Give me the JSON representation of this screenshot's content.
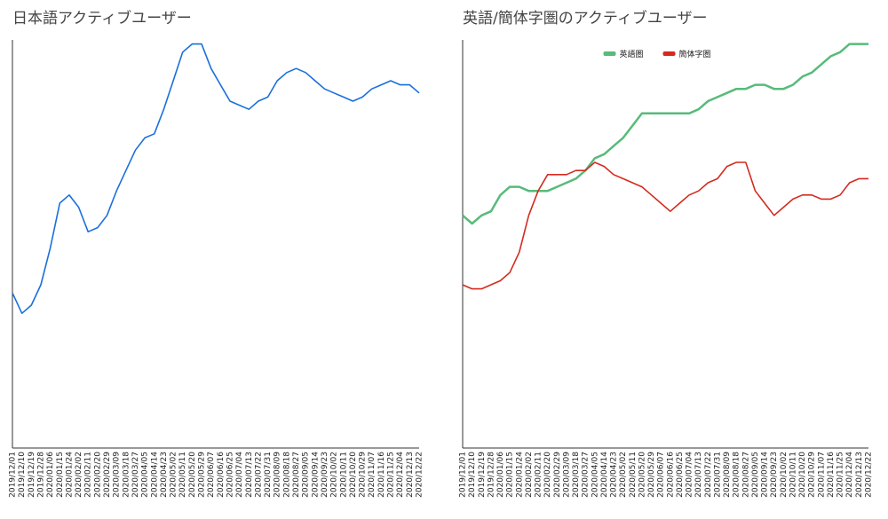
{
  "chart_data": [
    {
      "type": "line",
      "title": "日本語アクティブユーザー",
      "categories": [
        "2019/12/01",
        "2019/12/10",
        "2019/12/19",
        "2019/12/28",
        "2020/01/06",
        "2020/01/15",
        "2020/01/24",
        "2020/02/02",
        "2020/02/11",
        "2020/02/20",
        "2020/02/29",
        "2020/03/09",
        "2020/03/18",
        "2020/03/27",
        "2020/04/05",
        "2020/04/14",
        "2020/04/23",
        "2020/05/02",
        "2020/05/11",
        "2020/05/20",
        "2020/05/29",
        "2020/06/07",
        "2020/06/16",
        "2020/06/25",
        "2020/07/04",
        "2020/07/13",
        "2020/07/22",
        "2020/07/31",
        "2020/08/09",
        "2020/08/18",
        "2020/08/27",
        "2020/09/05",
        "2020/09/14",
        "2020/09/23",
        "2020/10/02",
        "2020/10/11",
        "2020/10/20",
        "2020/10/29",
        "2020/11/07",
        "2020/11/16",
        "2020/11/25",
        "2020/12/04",
        "2020/12/13",
        "2020/12/22"
      ],
      "series": [
        {
          "color": "#1a6fdc",
          "values": [
            38,
            33,
            35,
            40,
            49,
            60,
            62,
            59,
            53,
            54,
            57,
            63,
            68,
            73,
            76,
            77,
            83,
            90,
            97,
            99,
            99,
            93,
            89,
            85,
            84,
            83,
            85,
            86,
            90,
            92,
            93,
            92,
            90,
            88,
            87,
            86,
            85,
            86,
            88,
            89,
            90,
            89,
            89,
            87
          ]
        }
      ],
      "ylim": [
        0,
        100
      ]
    },
    {
      "type": "line",
      "title": "英語/簡体字圏のアクティブユーザー",
      "categories": [
        "2019/12/01",
        "2019/12/10",
        "2019/12/19",
        "2019/12/28",
        "2020/01/06",
        "2020/01/15",
        "2020/01/24",
        "2020/02/02",
        "2020/02/11",
        "2020/02/20",
        "2020/02/29",
        "2020/03/09",
        "2020/03/18",
        "2020/03/27",
        "2020/04/05",
        "2020/04/14",
        "2020/04/23",
        "2020/05/02",
        "2020/05/11",
        "2020/05/20",
        "2020/05/29",
        "2020/06/07",
        "2020/06/16",
        "2020/06/25",
        "2020/07/04",
        "2020/07/13",
        "2020/07/22",
        "2020/07/31",
        "2020/08/09",
        "2020/08/18",
        "2020/08/27",
        "2020/09/05",
        "2020/09/14",
        "2020/09/23",
        "2020/10/02",
        "2020/10/11",
        "2020/10/20",
        "2020/10/29",
        "2020/11/07",
        "2020/11/16",
        "2020/11/25",
        "2020/12/04",
        "2020/12/13",
        "2020/12/22"
      ],
      "series": [
        {
          "name": "英語圏",
          "color": "#57bb7a",
          "values": [
            57,
            55,
            57,
            58,
            62,
            64,
            64,
            63,
            63,
            63,
            64,
            65,
            66,
            68,
            71,
            72,
            74,
            76,
            79,
            82,
            82,
            82,
            82,
            82,
            82,
            83,
            85,
            86,
            87,
            88,
            88,
            89,
            89,
            88,
            88,
            89,
            91,
            92,
            94,
            96,
            97,
            99,
            99,
            99
          ]
        },
        {
          "name": "簡体字圏",
          "color": "#d42a1e",
          "values": [
            40,
            39,
            39,
            40,
            41,
            43,
            48,
            57,
            63,
            67,
            67,
            67,
            68,
            68,
            70,
            69,
            67,
            66,
            65,
            64,
            62,
            60,
            58,
            60,
            62,
            63,
            65,
            66,
            69,
            70,
            70,
            63,
            60,
            57,
            59,
            61,
            62,
            62,
            61,
            61,
            62,
            65,
            66,
            66
          ]
        }
      ],
      "ylim": [
        0,
        100
      ],
      "legend": "top"
    }
  ]
}
